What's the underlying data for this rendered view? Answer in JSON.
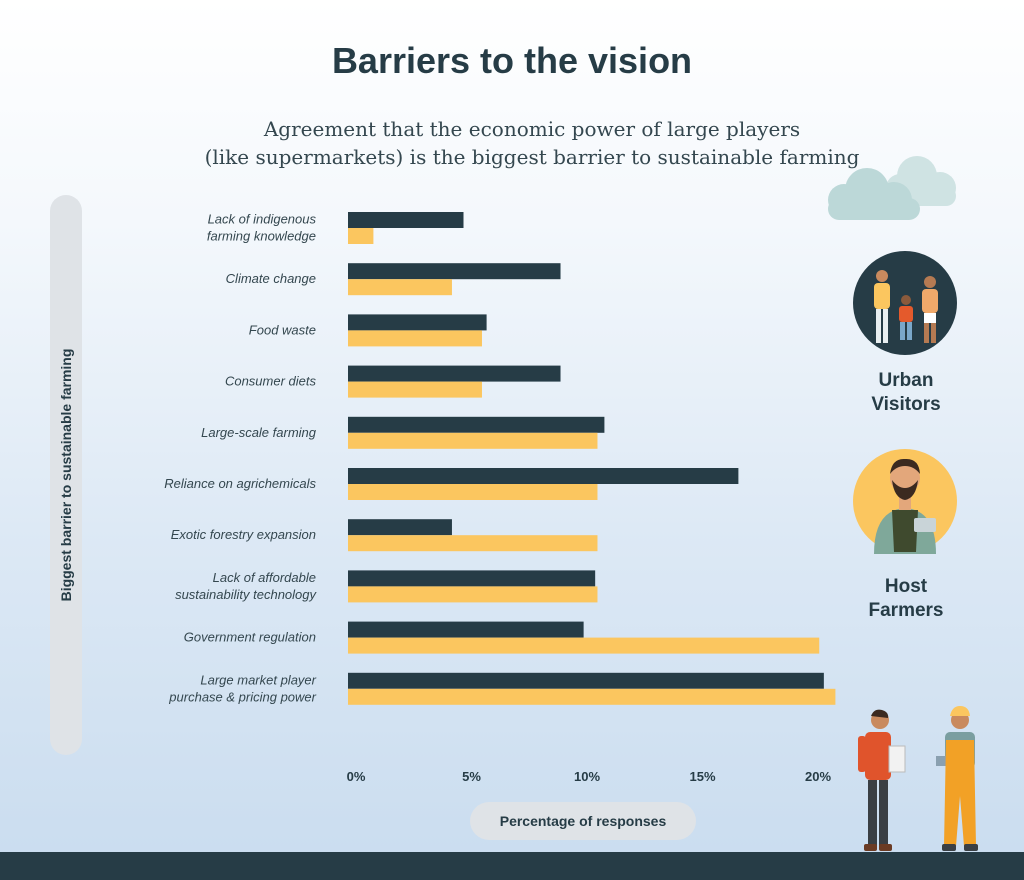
{
  "header": {
    "title": "Barriers to the vision",
    "subtitle_line1": "Agreement that the economic power of large players",
    "subtitle_line2": "(like supermarkets) is the biggest barrier to sustainable farming"
  },
  "legend": {
    "urban_line1": "Urban",
    "urban_line2": "Visitors",
    "host_line1": "Host",
    "host_line2": "Farmers"
  },
  "colors": {
    "urban": "#263c46",
    "host": "#fbc65f"
  },
  "chart_data": {
    "type": "bar",
    "orientation": "horizontal",
    "title": "Barriers to the vision",
    "xlabel": "Percentage of responses",
    "ylabel": "Biggest barrier to sustainable farming",
    "xlim": [
      0,
      21
    ],
    "xticks": [
      "0%",
      "5%",
      "10%",
      "15%",
      "20%"
    ],
    "xtick_values": [
      0,
      5,
      10,
      15,
      20
    ],
    "categories": [
      [
        "Lack of indigenous",
        "farming knowledge"
      ],
      [
        "Climate change"
      ],
      [
        "Food waste"
      ],
      [
        "Consumer diets"
      ],
      [
        "Large-scale farming"
      ],
      [
        "Reliance on agrichemicals"
      ],
      [
        "Exotic forestry expansion"
      ],
      [
        "Lack of affordable",
        "sustainability technology"
      ],
      [
        "Government regulation"
      ],
      [
        "Large market player",
        "purchase & pricing power"
      ]
    ],
    "series": [
      {
        "name": "Urban Visitors",
        "values": [
          5.0,
          9.2,
          6.0,
          9.2,
          11.1,
          16.9,
          4.5,
          10.7,
          10.2,
          20.6
        ]
      },
      {
        "name": "Host Farmers",
        "values": [
          1.1,
          4.5,
          5.8,
          5.8,
          10.8,
          10.8,
          10.8,
          10.8,
          20.4,
          21.1
        ]
      }
    ]
  }
}
